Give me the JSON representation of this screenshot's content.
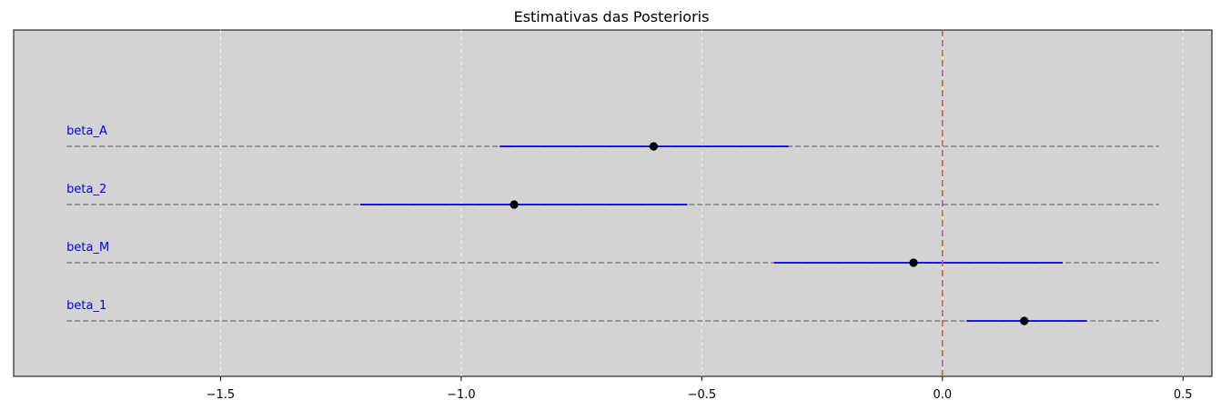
{
  "chart_data": {
    "type": "forest",
    "title": "Estimativas das Posterioris",
    "xlabel": "",
    "ylabel": "",
    "xlim": [
      -1.93,
      0.56
    ],
    "xticks": [
      -1.5,
      -1.0,
      -0.5,
      0.0,
      0.5
    ],
    "xtick_labels": [
      "−1.5",
      "−1.0",
      "−0.5",
      "0.0",
      "0.5"
    ],
    "grid": "vertical dashed",
    "reference_line": 0.0,
    "row_line_range": [
      -1.82,
      0.45
    ],
    "colors": {
      "background": "#d3d3d3",
      "interval": "#0000ff",
      "point": "#000000",
      "row_line": "#808080",
      "reference_line": "#e05555",
      "label": "#0000ff"
    },
    "parameters": [
      {
        "label": "beta_A",
        "mean": -0.6,
        "low": -0.92,
        "high": -0.32
      },
      {
        "label": "beta_2",
        "mean": -0.89,
        "low": -1.21,
        "high": -0.53
      },
      {
        "label": "beta_M",
        "mean": -0.06,
        "low": -0.35,
        "high": 0.25
      },
      {
        "label": "beta_1",
        "mean": 0.17,
        "low": 0.05,
        "high": 0.3
      }
    ]
  }
}
